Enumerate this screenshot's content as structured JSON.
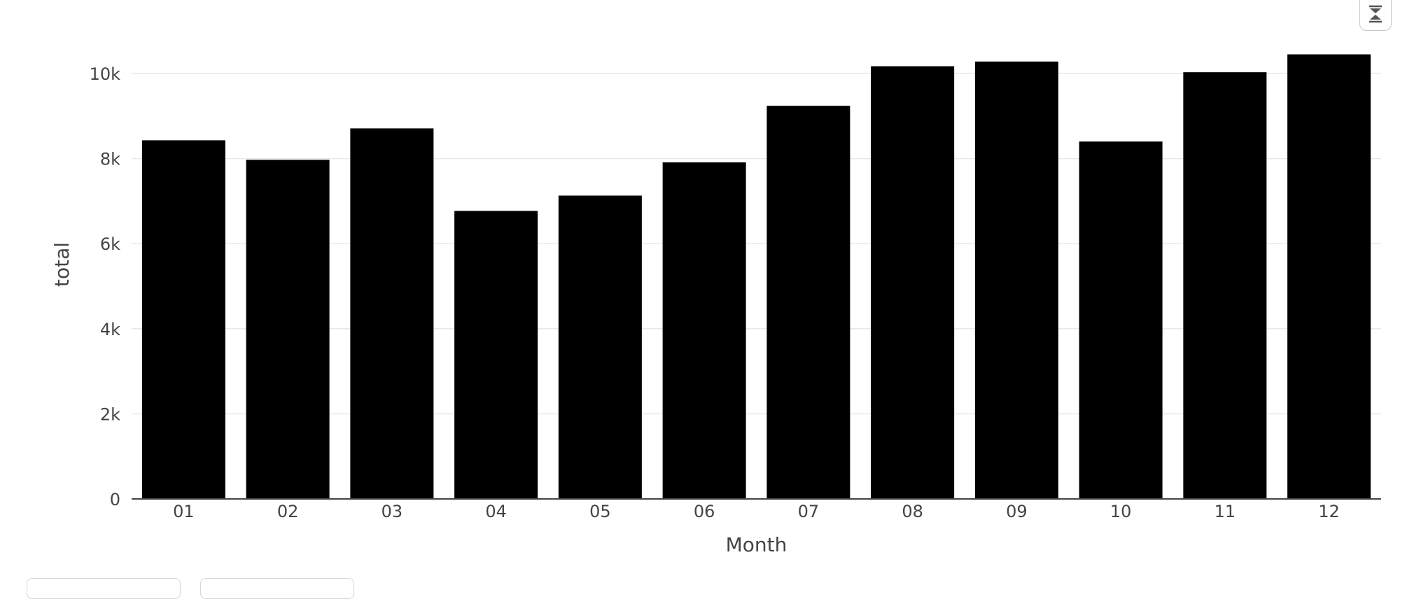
{
  "chart_data": {
    "type": "bar",
    "categories": [
      "01",
      "02",
      "03",
      "04",
      "05",
      "06",
      "07",
      "08",
      "09",
      "10",
      "11",
      "12"
    ],
    "values": [
      8430,
      7970,
      8710,
      6770,
      7130,
      7910,
      9240,
      10170,
      10280,
      8400,
      10030,
      10450
    ],
    "xlabel": "Month",
    "ylabel": "total",
    "ylim": [
      0,
      10900
    ],
    "yticks": [
      0,
      2000,
      4000,
      6000,
      8000,
      10000
    ],
    "ytick_labels": [
      "0",
      "2k",
      "4k",
      "6k",
      "8k",
      "10k"
    ],
    "bar_color": "#000000",
    "grid": true,
    "grid_color": "#e8e8e8",
    "legend": "none"
  },
  "controls": {
    "collapse_icon": "collapse-arrows-icon"
  }
}
